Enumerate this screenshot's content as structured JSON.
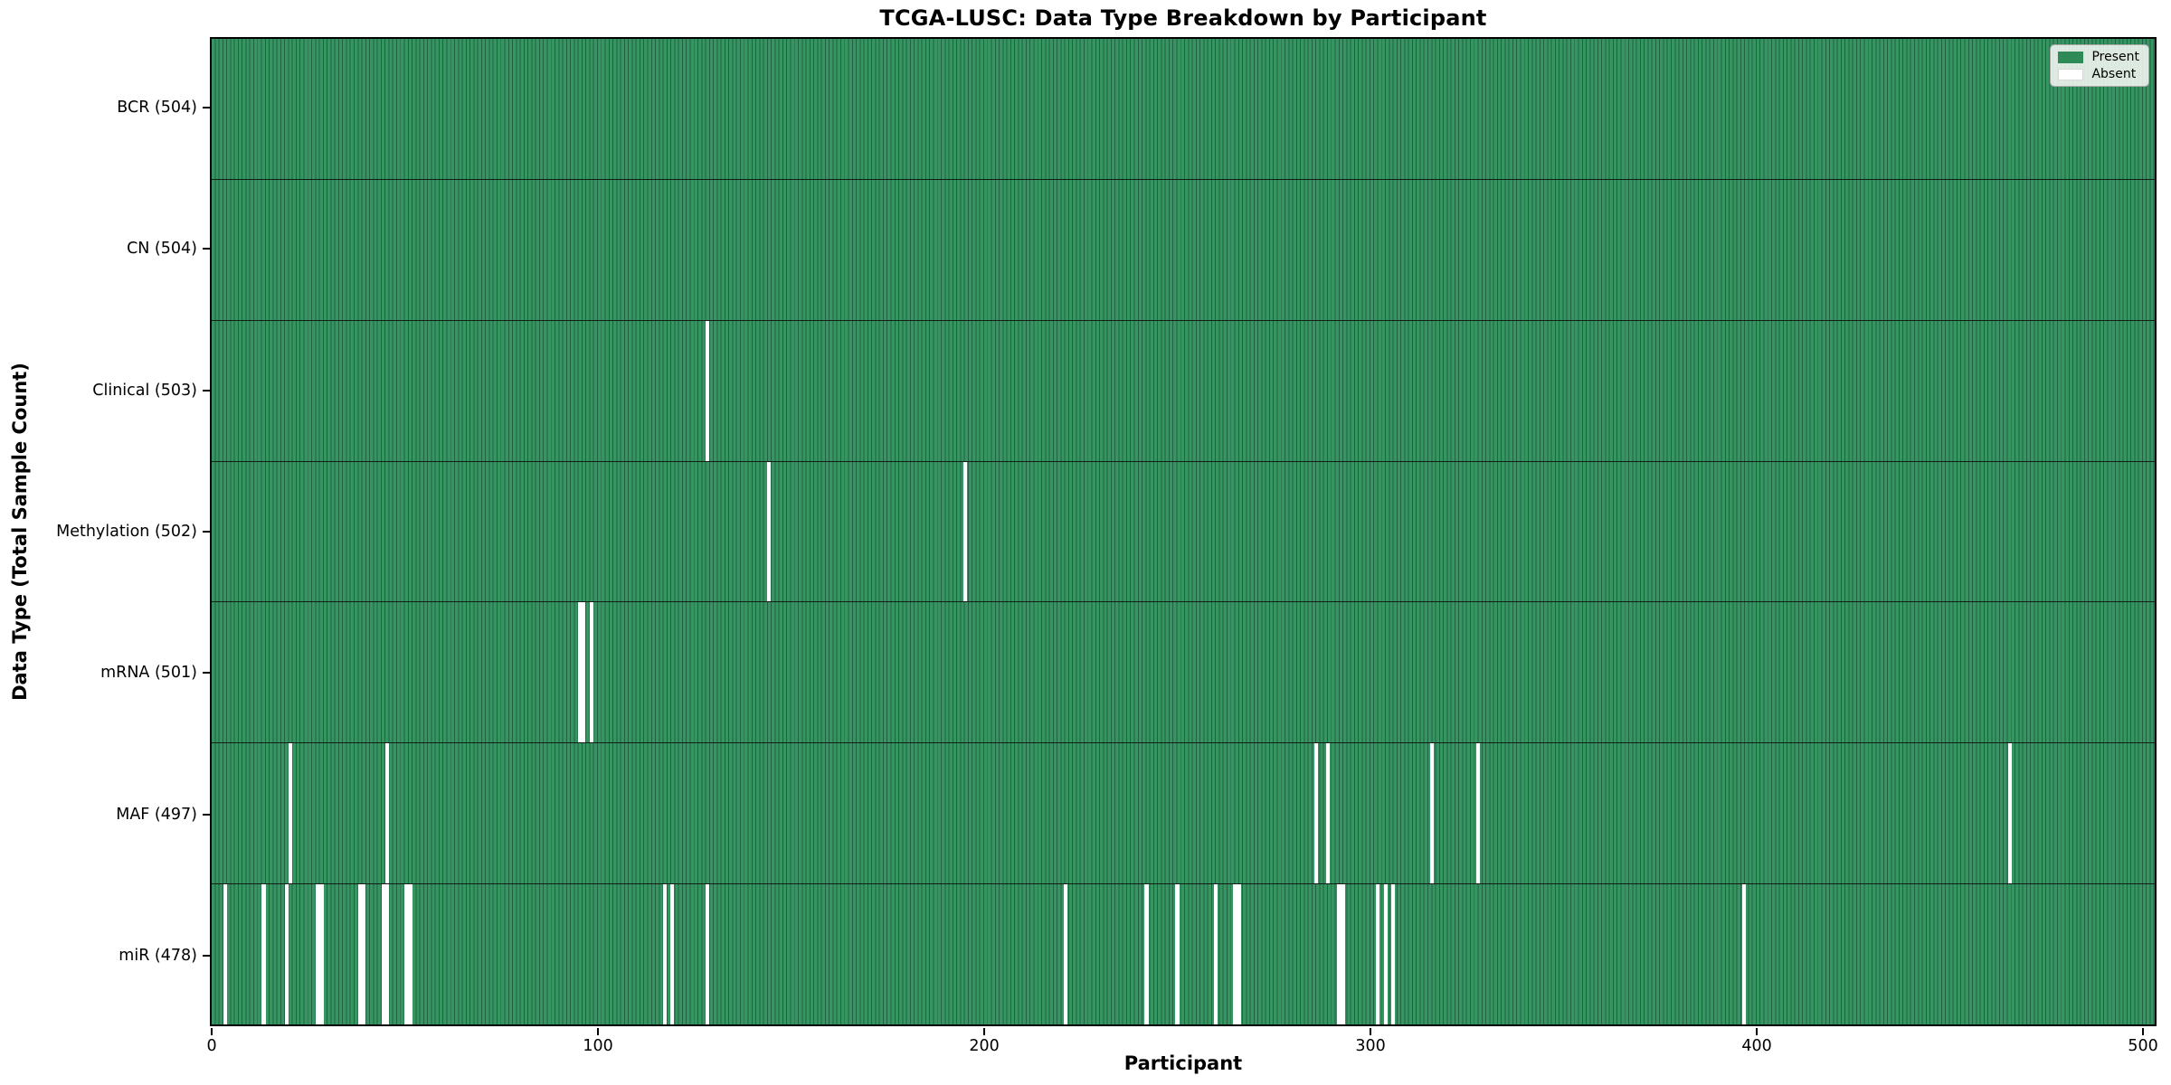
{
  "figure": {
    "background": "#ffffff"
  },
  "chart_data": {
    "type": "heatmap",
    "title": "TCGA-LUSC: Data Type Breakdown by Participant",
    "xlabel": "Participant",
    "ylabel": "Data Type (Total Sample Count)",
    "x_ticks": [
      0,
      100,
      200,
      300,
      400,
      500
    ],
    "x_range": [
      -0.5,
      503.5
    ],
    "n_participants": 504,
    "grid": false,
    "cell_states": [
      "Present",
      "Absent"
    ],
    "legend": {
      "position": "upper right",
      "entries": [
        {
          "label": "Present",
          "color": "#2e8b57"
        },
        {
          "label": "Absent",
          "color": "#ffffff"
        }
      ]
    },
    "colors": {
      "present_fill": "#379562",
      "present_edge": "#226244",
      "absent_fill": "#ffffff",
      "row_divider": "#101e16",
      "axis": "#000000"
    },
    "rows": [
      {
        "label": "BCR (504)",
        "data_type": "BCR",
        "total": 504,
        "absent_participants": []
      },
      {
        "label": "CN (504)",
        "data_type": "CN",
        "total": 504,
        "absent_participants": []
      },
      {
        "label": "Clinical (503)",
        "data_type": "Clinical",
        "total": 503,
        "absent_participants": [
          128
        ]
      },
      {
        "label": "Methylation (502)",
        "data_type": "Methylation",
        "total": 502,
        "absent_participants": [
          144,
          195
        ]
      },
      {
        "label": "mRNA (501)",
        "data_type": "mRNA",
        "total": 501,
        "absent_participants": [
          95,
          96,
          98
        ]
      },
      {
        "label": "MAF (497)",
        "data_type": "MAF",
        "total": 497,
        "absent_participants": [
          20,
          45,
          286,
          289,
          316,
          328,
          466
        ]
      },
      {
        "label": "miR (478)",
        "data_type": "miR",
        "total": 478,
        "absent_participants": [
          3,
          13,
          19,
          27,
          28,
          38,
          39,
          44,
          45,
          50,
          51,
          117,
          119,
          128,
          221,
          242,
          250,
          260,
          265,
          266,
          292,
          293,
          302,
          304,
          306,
          397
        ]
      }
    ]
  }
}
